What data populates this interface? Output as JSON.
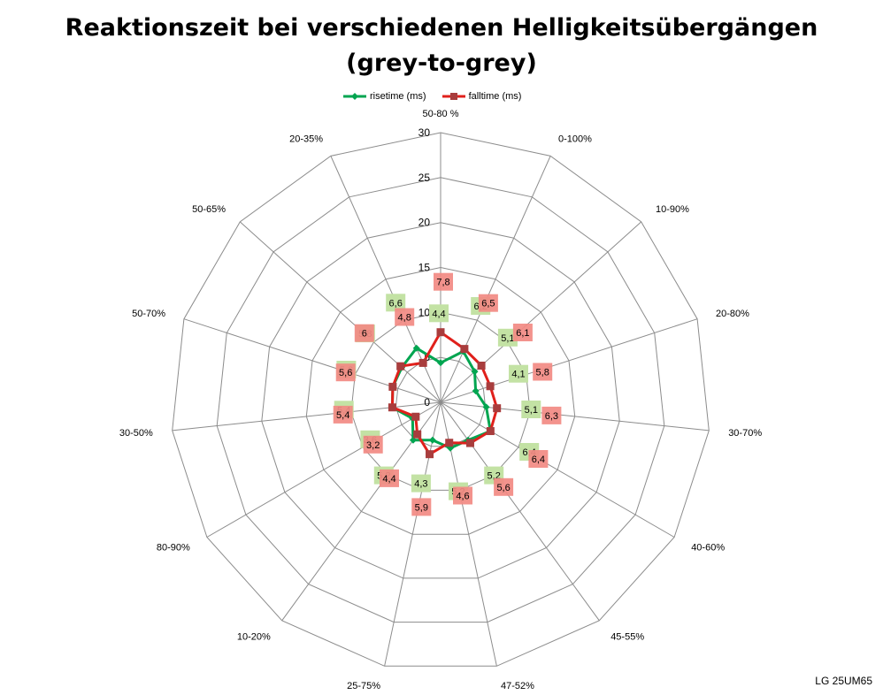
{
  "chart_data": {
    "type": "radar",
    "title_lines": [
      "Reaktionszeit bei verschiedenen Helligkeitsübergängen",
      "(grey-to-grey)"
    ],
    "categories": [
      "50-80 %",
      "0-100%",
      "10-90%",
      "20-80%",
      "30-70%",
      "40-60%",
      "45-55%",
      "47-52%",
      "25-75%",
      "10-20%",
      "80-90%",
      "30-50%",
      "50-70%",
      "50-65%",
      "20-35%"
    ],
    "axis_ticks": [
      "0",
      "5",
      "10",
      "15",
      "20",
      "25",
      "30"
    ],
    "rmin": 0,
    "rmax": 30,
    "rmajor": 5,
    "grid": true,
    "legend_position": "top",
    "series": [
      {
        "name": "risetime (ms)",
        "color": "#00a550",
        "label_bg": "#c3e2a4",
        "values": [
          4.4,
          6.2,
          5.1,
          4.1,
          5.1,
          6.4,
          5.2,
          5.2,
          4.3,
          5.2,
          3.6,
          5.4,
          5.6,
          5.8,
          6.6
        ],
        "labels": [
          "4,4",
          "6,2",
          "5,1",
          "4,1",
          "5,1",
          "6,4",
          "5,2",
          "5,2",
          "4,3",
          "5,2",
          "3,6",
          "5,4",
          "5,6",
          "5,8",
          "6,6"
        ]
      },
      {
        "name": "falltime (ms)",
        "color": "#e0201b",
        "label_bg": "#f28a83",
        "values": [
          7.8,
          6.5,
          6.1,
          5.8,
          6.3,
          6.4,
          5.6,
          4.6,
          5.9,
          4.4,
          3.2,
          5.4,
          5.6,
          6.0,
          4.8
        ],
        "labels": [
          "7,8",
          "6,5",
          "6,1",
          "5,8",
          "6,3",
          "6,4",
          "5,6",
          "4,6",
          "5,9",
          "4,4",
          "3,2",
          "5,4",
          "5,6",
          "6",
          "4,8"
        ]
      }
    ]
  },
  "footer": {
    "model": "LG 25UM65"
  }
}
